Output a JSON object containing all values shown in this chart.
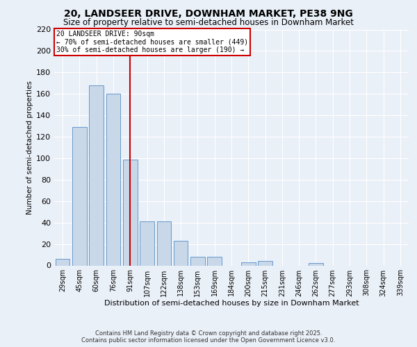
{
  "title": "20, LANDSEER DRIVE, DOWNHAM MARKET, PE38 9NG",
  "subtitle": "Size of property relative to semi-detached houses in Downham Market",
  "xlabel": "Distribution of semi-detached houses by size in Downham Market",
  "ylabel": "Number of semi-detached properties",
  "footnote1": "Contains HM Land Registry data © Crown copyright and database right 2025.",
  "footnote2": "Contains public sector information licensed under the Open Government Licence v3.0.",
  "bar_labels": [
    "29sqm",
    "45sqm",
    "60sqm",
    "76sqm",
    "91sqm",
    "107sqm",
    "122sqm",
    "138sqm",
    "153sqm",
    "169sqm",
    "184sqm",
    "200sqm",
    "215sqm",
    "231sqm",
    "246sqm",
    "262sqm",
    "277sqm",
    "293sqm",
    "308sqm",
    "324sqm",
    "339sqm"
  ],
  "bar_values": [
    6,
    129,
    168,
    160,
    99,
    41,
    41,
    23,
    8,
    8,
    0,
    3,
    4,
    0,
    0,
    2,
    0,
    0,
    0,
    0,
    0
  ],
  "bar_color": "#c8d8e8",
  "bar_edge_color": "#6699cc",
  "property_line_index": 4,
  "property_label": "20 LANDSEER DRIVE: 90sqm",
  "annotation_line1": "← 70% of semi-detached houses are smaller (449)",
  "annotation_line2": "30% of semi-detached houses are larger (190) →",
  "annotation_box_color": "#cc0000",
  "vertical_line_color": "#cc0000",
  "ylim": [
    0,
    220
  ],
  "yticks": [
    0,
    20,
    40,
    60,
    80,
    100,
    120,
    140,
    160,
    180,
    200,
    220
  ],
  "bg_color": "#eaf0f8",
  "plot_bg_color": "#eaf0f8",
  "grid_color": "#ffffff",
  "title_fontsize": 10,
  "subtitle_fontsize": 8.5
}
